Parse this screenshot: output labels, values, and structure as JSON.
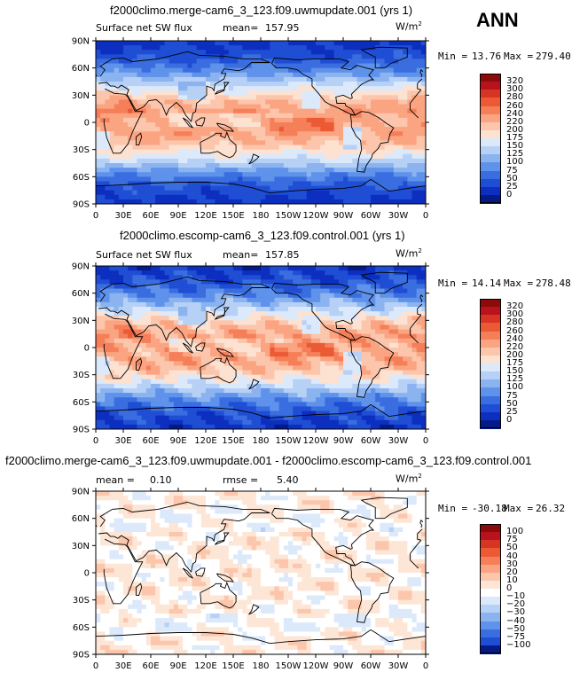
{
  "corner_label": "ANN",
  "lat_ticks": [
    "90N",
    "60N",
    "30N",
    "0",
    "30S",
    "60S",
    "90S"
  ],
  "lon_ticks": [
    "0",
    "30E",
    "60E",
    "90E",
    "120E",
    "150E",
    "180",
    "150W",
    "120W",
    "90W",
    "60W",
    "30W",
    "0"
  ],
  "panels": [
    {
      "title": "f2000climo.merge-cam6_3_123.f09.uwmupdate.001 (yrs 1)",
      "left_label": "Surface net SW flux",
      "stat_label": "mean=",
      "stat_value": "157.95",
      "stat2_label": "",
      "stat2_value": "",
      "units": "W/m",
      "units_sup": "2",
      "min_label": "Min =",
      "min_value": "13.76",
      "max_label": "Max =",
      "max_value": "279.40",
      "levels": [
        "320",
        "300",
        "280",
        "260",
        "240",
        "220",
        "200",
        "175",
        "150",
        "125",
        "100",
        "75",
        "50",
        "25",
        "0"
      ],
      "colors": [
        "#8b0a0a",
        "#b8131c",
        "#d63523",
        "#ec5a35",
        "#f57f59",
        "#fba482",
        "#fcc6ac",
        "#fde2d2",
        "#dbe9fb",
        "#b6d0f6",
        "#8ab3f0",
        "#5f92ea",
        "#3a6ee0",
        "#1f4ed4",
        "#0d2fc0",
        "#041a86"
      ],
      "field": "sw"
    },
    {
      "title": "f2000climo.escomp-cam6_3_123.f09.control.001 (yrs 1)",
      "left_label": "Surface net SW flux",
      "stat_label": "mean=",
      "stat_value": "157.85",
      "stat2_label": "",
      "stat2_value": "",
      "units": "W/m",
      "units_sup": "2",
      "min_label": "Min =",
      "min_value": "14.14",
      "max_label": "Max =",
      "max_value": "278.48",
      "levels": [
        "320",
        "300",
        "280",
        "260",
        "240",
        "220",
        "200",
        "175",
        "150",
        "125",
        "100",
        "75",
        "50",
        "25",
        "0"
      ],
      "colors": [
        "#8b0a0a",
        "#b8131c",
        "#d63523",
        "#ec5a35",
        "#f57f59",
        "#fba482",
        "#fcc6ac",
        "#fde2d2",
        "#dbe9fb",
        "#b6d0f6",
        "#8ab3f0",
        "#5f92ea",
        "#3a6ee0",
        "#1f4ed4",
        "#0d2fc0",
        "#041a86"
      ],
      "field": "sw"
    },
    {
      "title": "f2000climo.merge-cam6_3_123.f09.uwmupdate.001 - f2000climo.escomp-cam6_3_123.f09.control.001",
      "left_label": "",
      "stat_label": "mean =",
      "stat_value": "0.10",
      "stat2_label": "rmse =",
      "stat2_value": "5.40",
      "units": "W/m",
      "units_sup": "2",
      "min_label": "Min =",
      "min_value": "-30.18",
      "max_label": "Max =",
      "max_value": "26.32",
      "levels": [
        "100",
        "75",
        "50",
        "40",
        "30",
        "20",
        "10",
        "0",
        "−10",
        "−20",
        "−30",
        "−40",
        "−50",
        "−75",
        "−100"
      ],
      "colors": [
        "#8b0a0a",
        "#b8131c",
        "#d63523",
        "#ec5a35",
        "#f57f59",
        "#fba482",
        "#fcc6ac",
        "#fde6d6",
        "#ffffff",
        "#dbe9fb",
        "#b6d0f6",
        "#8ab3f0",
        "#5f92ea",
        "#3a6ee0",
        "#1f4ed4",
        "#041a86"
      ],
      "field": "diff"
    }
  ]
}
